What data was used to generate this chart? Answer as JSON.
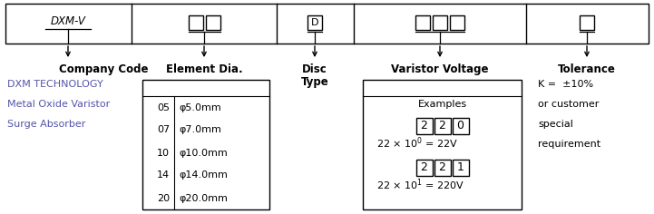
{
  "bg_color": "#ffffff",
  "border_color": "#000000",
  "text_color": "#000000",
  "blue_color": "#5555aa",
  "fig_width": 7.21,
  "fig_height": 2.36,
  "company_lines": [
    "DXM TECHNOLOGY",
    "Metal Oxide Varistor",
    "Surge Absorber"
  ],
  "element_rows": [
    {
      "code": "05",
      "desc": "φ5.0mm"
    },
    {
      "code": "07",
      "desc": "φ7.0mm"
    },
    {
      "code": "10",
      "desc": "φ10.0mm"
    },
    {
      "code": "14",
      "desc": "φ14.0mm"
    },
    {
      "code": "20",
      "desc": "φ20.0mm"
    }
  ],
  "tolerance_lines": [
    "K =  ±10%",
    "or customer",
    "special",
    "requirement"
  ]
}
